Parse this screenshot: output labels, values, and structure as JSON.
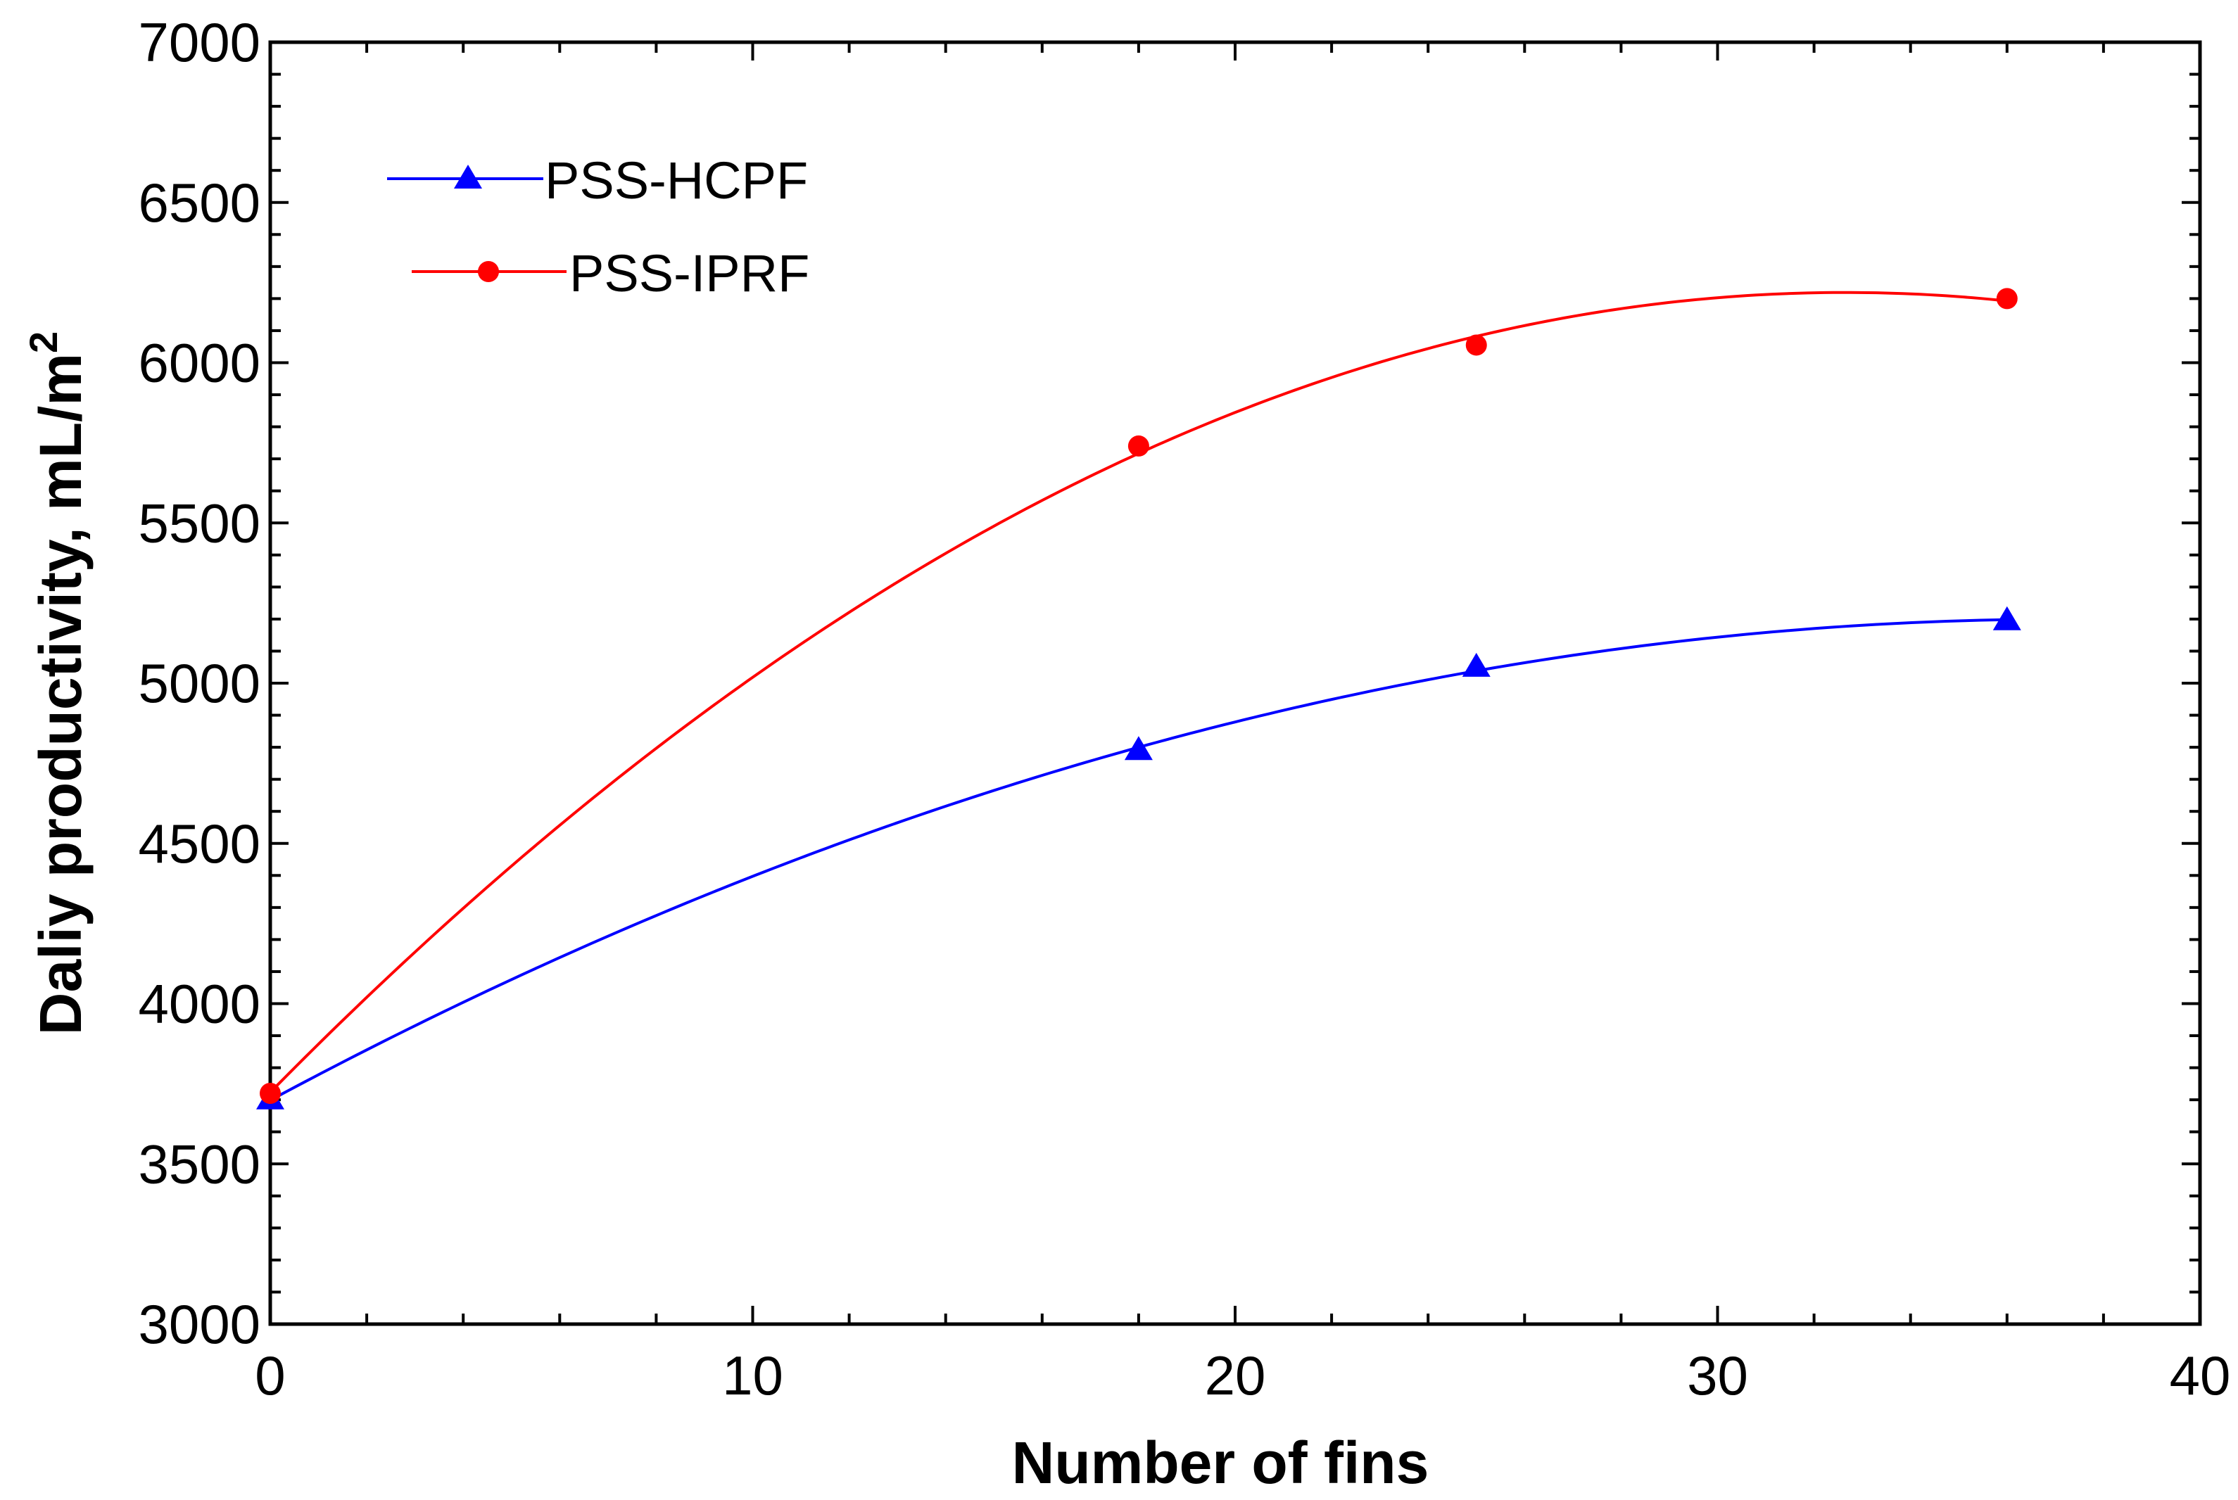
{
  "chart_data": {
    "type": "line",
    "xlabel": "Number of fins",
    "ylabel": "Daliy productivity, mL/m",
    "ylabel_superscript": "2",
    "xlim": [
      0,
      40
    ],
    "ylim": [
      3000,
      7000
    ],
    "x_ticks": [
      0,
      10,
      20,
      30,
      40
    ],
    "y_ticks": [
      3000,
      3500,
      4000,
      4500,
      5000,
      5500,
      6000,
      6500,
      7000
    ],
    "x_ticks_labels": [
      "0",
      "10",
      "20",
      "30",
      "40"
    ],
    "y_ticks_labels": [
      "3000",
      "3500",
      "4000",
      "4500",
      "5000",
      "5500",
      "6000",
      "6500",
      "7000"
    ],
    "grid": false,
    "legend_position": "top-left",
    "series": [
      {
        "name": "PSS-HCPF",
        "color": "#0000ff",
        "marker": "triangle",
        "x": [
          0,
          18,
          25,
          36
        ],
        "y": [
          3700,
          4790,
          5050,
          5195
        ]
      },
      {
        "name": "PSS-IPRF",
        "color": "#ff0000",
        "marker": "circle",
        "x": [
          0,
          18,
          25,
          36
        ],
        "y": [
          3720,
          5740,
          6055,
          6200
        ]
      }
    ]
  }
}
